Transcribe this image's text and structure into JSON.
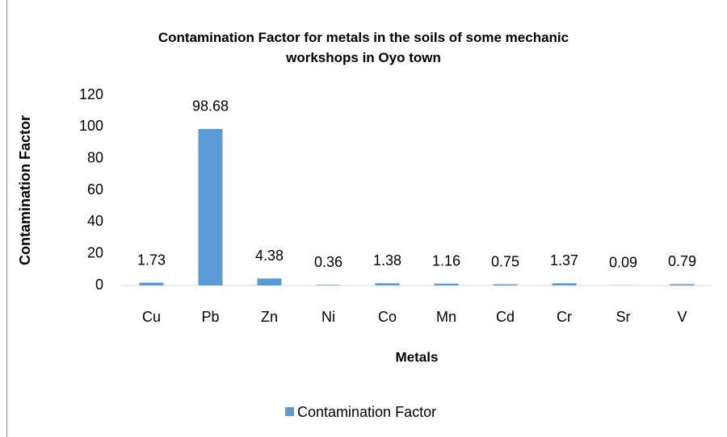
{
  "chart_data": {
    "type": "bar",
    "title": "Contamination Factor for metals in the soils of some mechanic workshops in Oyo town",
    "x_label": "Metals",
    "y_label": "Contamination Factor",
    "categories": [
      "Cu",
      "Pb",
      "Zn",
      "Ni",
      "Co",
      "Mn",
      "Cd",
      "Cr",
      "Sr",
      "V"
    ],
    "series": [
      {
        "name": "Contamination Factor",
        "color": "#5b9bd5",
        "values": [
          1.73,
          98.68,
          4.38,
          0.36,
          1.38,
          1.16,
          0.75,
          1.37,
          0.09,
          0.79
        ]
      }
    ],
    "ylim": [
      0,
      120
    ],
    "yticks": [
      0,
      20,
      40,
      60,
      80,
      100,
      120
    ],
    "grid": false,
    "legend": "bottom"
  }
}
